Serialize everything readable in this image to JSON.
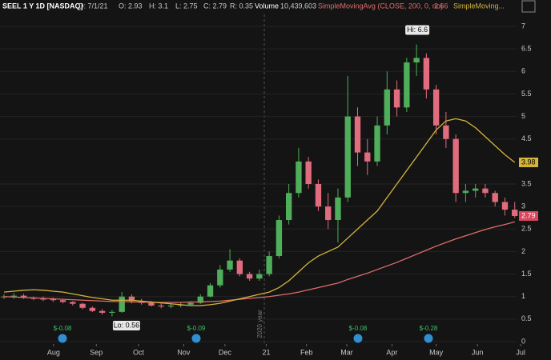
{
  "header": {
    "items": [
      "SEEL 1 Y 1D [NASDAQ]",
      "D: 7/1/21",
      "O: 2.93",
      "H: 3.1",
      "L: 2.75",
      "C: 2.79",
      "R: 0.35",
      "Volume",
      "10,439,603"
    ]
  },
  "chart_data": {
    "type": "candlestick",
    "open": [
      1.0,
      1.0,
      1.02,
      0.98,
      0.95,
      0.94,
      0.92,
      0.88,
      0.84,
      0.75,
      0.68,
      0.64,
      0.66,
      1.0,
      0.9,
      0.86,
      0.8,
      0.78,
      0.8,
      0.82,
      0.86,
      1.0,
      1.25,
      1.6,
      1.8,
      1.5,
      1.4,
      1.5,
      1.9,
      2.7,
      3.3,
      4.0,
      3.5,
      3.0,
      2.7,
      3.2,
      5.0,
      4.2,
      4.0,
      4.8,
      5.6,
      5.2,
      6.2,
      6.3,
      5.6,
      4.8,
      4.5,
      3.3,
      3.35,
      3.4,
      3.3,
      3.1,
      2.93
    ],
    "high": [
      1.05,
      1.08,
      1.06,
      1.0,
      1.0,
      0.98,
      0.95,
      0.9,
      0.86,
      0.78,
      0.72,
      0.7,
      1.1,
      1.05,
      0.95,
      0.9,
      0.85,
      0.84,
      0.88,
      0.9,
      1.05,
      1.3,
      1.7,
      2.05,
      1.85,
      1.55,
      1.6,
      2.0,
      2.8,
      3.5,
      4.3,
      4.1,
      3.6,
      3.3,
      3.4,
      5.9,
      5.2,
      4.5,
      5.0,
      6.0,
      5.8,
      6.3,
      6.6,
      6.4,
      5.7,
      5.1,
      4.6,
      3.5,
      3.5,
      3.5,
      3.35,
      3.2,
      3.1
    ],
    "low": [
      0.95,
      0.95,
      0.95,
      0.92,
      0.9,
      0.88,
      0.85,
      0.8,
      0.72,
      0.66,
      0.6,
      0.56,
      0.64,
      0.85,
      0.82,
      0.78,
      0.74,
      0.74,
      0.76,
      0.8,
      0.84,
      0.98,
      1.2,
      1.55,
      1.45,
      1.35,
      1.35,
      1.45,
      1.85,
      2.6,
      3.2,
      3.4,
      2.9,
      2.5,
      2.2,
      3.1,
      3.9,
      3.7,
      3.9,
      4.6,
      5.0,
      5.1,
      5.9,
      5.4,
      4.6,
      4.3,
      3.1,
      3.1,
      3.2,
      3.2,
      3.0,
      2.8,
      2.75
    ],
    "close": [
      1.0,
      1.02,
      0.98,
      0.95,
      0.94,
      0.92,
      0.88,
      0.84,
      0.75,
      0.68,
      0.64,
      0.66,
      1.0,
      0.9,
      0.86,
      0.8,
      0.78,
      0.8,
      0.82,
      0.86,
      1.0,
      1.25,
      1.6,
      1.8,
      1.5,
      1.4,
      1.5,
      1.9,
      2.7,
      3.3,
      4.0,
      3.5,
      3.0,
      2.7,
      3.2,
      5.0,
      4.2,
      4.0,
      4.8,
      5.6,
      5.2,
      6.2,
      6.3,
      5.6,
      4.8,
      4.5,
      3.3,
      3.35,
      3.4,
      3.3,
      3.1,
      2.93,
      2.79
    ],
    "up_color": "#4fae5a",
    "down_color": "#e06c7d",
    "series": [
      {
        "name": "SimpleMovingAvg (CLOSE, 200, 0, no)",
        "color": "#e06c6c",
        "values": [
          1.0,
          0.99,
          0.98,
          0.97,
          0.96,
          0.95,
          0.94,
          0.93,
          0.92,
          0.91,
          0.9,
          0.89,
          0.89,
          0.88,
          0.88,
          0.87,
          0.87,
          0.87,
          0.87,
          0.88,
          0.88,
          0.89,
          0.9,
          0.92,
          0.94,
          0.96,
          0.98,
          1.0,
          1.03,
          1.06,
          1.1,
          1.15,
          1.2,
          1.25,
          1.3,
          1.38,
          1.45,
          1.52,
          1.6,
          1.68,
          1.76,
          1.85,
          1.94,
          2.03,
          2.12,
          2.2,
          2.28,
          2.35,
          2.42,
          2.49,
          2.55,
          2.6,
          2.66
        ]
      },
      {
        "name": "SimpleMoving...",
        "color": "#d4b43a",
        "values": [
          1.1,
          1.12,
          1.14,
          1.15,
          1.14,
          1.12,
          1.1,
          1.06,
          1.02,
          0.98,
          0.95,
          0.92,
          0.92,
          0.92,
          0.9,
          0.88,
          0.86,
          0.84,
          0.82,
          0.8,
          0.8,
          0.82,
          0.85,
          0.9,
          0.95,
          1.0,
          1.05,
          1.1,
          1.2,
          1.35,
          1.55,
          1.75,
          1.9,
          2.0,
          2.1,
          2.3,
          2.5,
          2.7,
          2.9,
          3.2,
          3.5,
          3.8,
          4.1,
          4.4,
          4.7,
          4.9,
          4.95,
          4.9,
          4.75,
          4.55,
          4.35,
          4.15,
          3.98
        ]
      }
    ],
    "xlim": [
      0,
      53
    ],
    "xticks": [
      {
        "value": 5.05,
        "label": "Aug"
      },
      {
        "value": 9.4,
        "label": "Sep"
      },
      {
        "value": 13.7,
        "label": "Oct"
      },
      {
        "value": 18.3,
        "label": "Nov"
      },
      {
        "value": 22.5,
        "label": "Dec"
      },
      {
        "value": 26.7,
        "label": "21"
      },
      {
        "value": 30.8,
        "label": "Feb"
      },
      {
        "value": 34.9,
        "label": "Mar"
      },
      {
        "value": 39.5,
        "label": "Apr"
      },
      {
        "value": 44.0,
        "label": "May"
      },
      {
        "value": 48.2,
        "label": "Jun"
      },
      {
        "value": 52.6,
        "label": "Jul"
      }
    ],
    "ylim": [
      0,
      7
    ],
    "yticks": [
      0,
      0.5,
      1,
      1.5,
      2,
      2.5,
      3,
      3.5,
      4.5,
      5,
      5.5,
      6,
      6.5,
      7
    ],
    "grid": true,
    "annotations": [
      "Hi: 6.6",
      "Lo: 0.56",
      "2020 year"
    ],
    "earnings": [
      "$-0.08",
      "$-0.09",
      "$-0.08",
      "$-0.28"
    ]
  }
}
